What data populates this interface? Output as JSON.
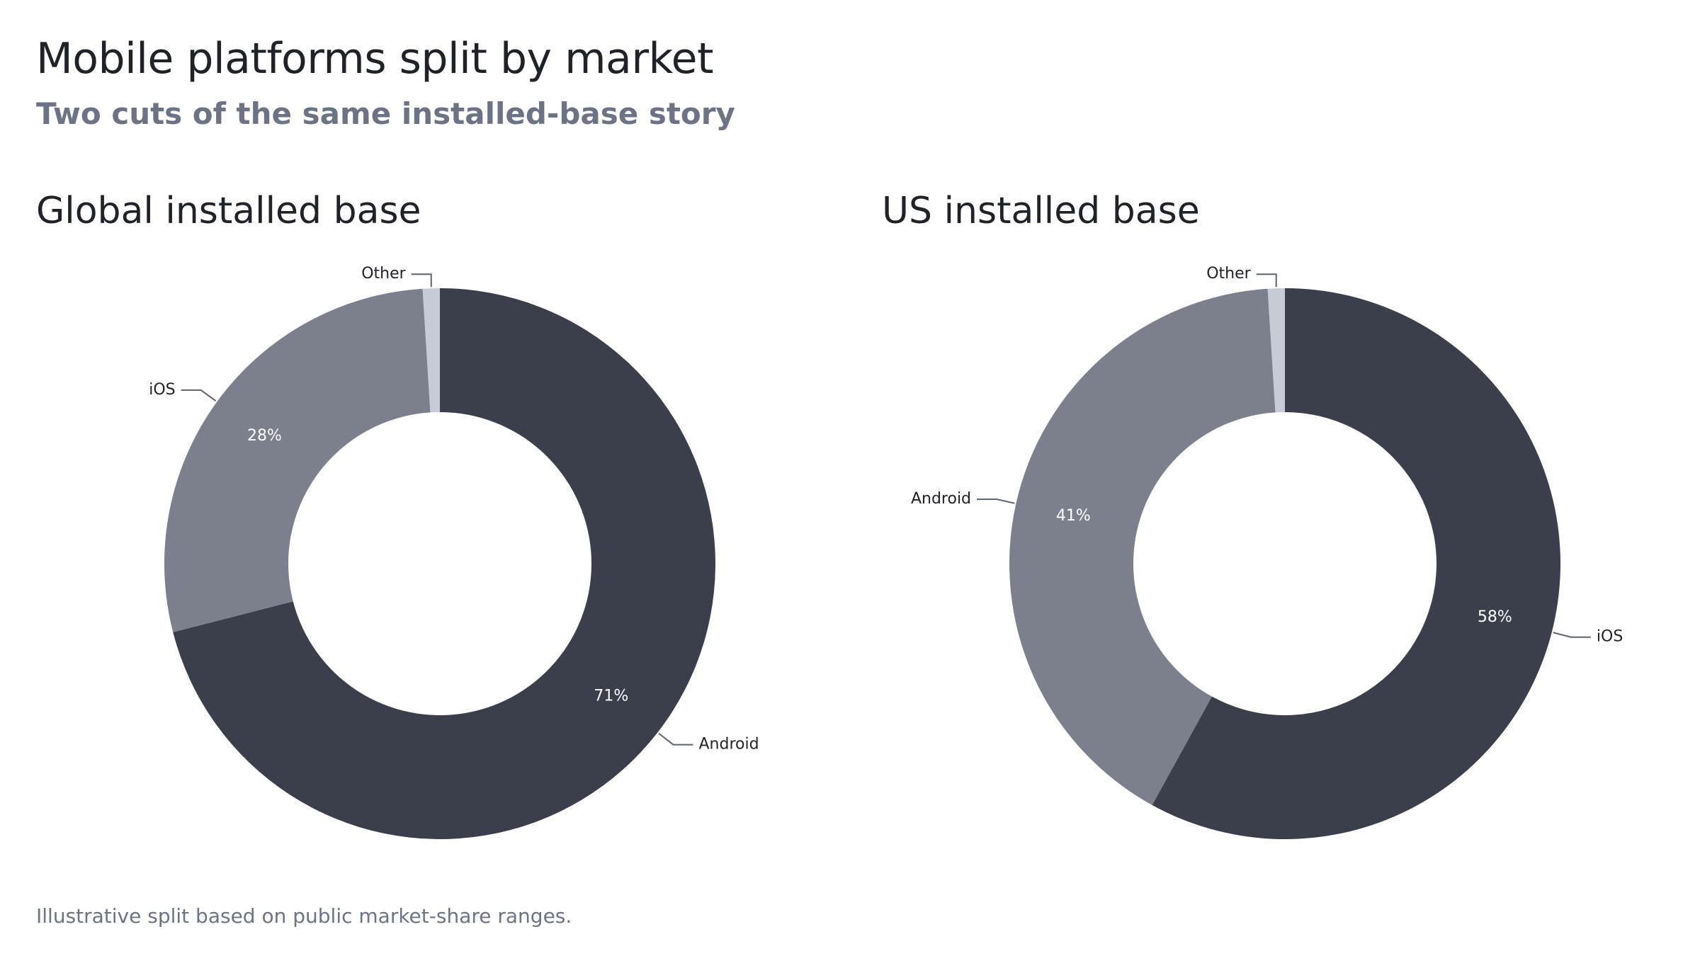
{
  "title": "Mobile platforms split by market",
  "subtitle": "Two cuts of the same installed-base story",
  "footnote": "Illustrative split based on public market-share ranges.",
  "colors": {
    "Android": "#3a3f4b",
    "iOS": "#7b808c",
    "Other": "#c7cbd6",
    "leader": "#5d6270",
    "pct_text": "#ffffff"
  },
  "chart_data": [
    {
      "type": "pie",
      "variant": "donut",
      "title": "Global installed base",
      "slices": [
        {
          "label": "Android",
          "value": 71,
          "display": "71%",
          "color_key": "Android"
        },
        {
          "label": "iOS",
          "value": 28,
          "display": "28%",
          "color_key": "iOS"
        },
        {
          "label": "Other",
          "value": 1,
          "display": "",
          "color_key": "Other"
        }
      ]
    },
    {
      "type": "pie",
      "variant": "donut",
      "title": "US installed base",
      "slices": [
        {
          "label": "iOS",
          "value": 58,
          "display": "58%",
          "color_key": "Android"
        },
        {
          "label": "Android",
          "value": 41,
          "display": "41%",
          "color_key": "iOS"
        },
        {
          "label": "Other",
          "value": 1,
          "display": "",
          "color_key": "Other"
        }
      ]
    }
  ]
}
